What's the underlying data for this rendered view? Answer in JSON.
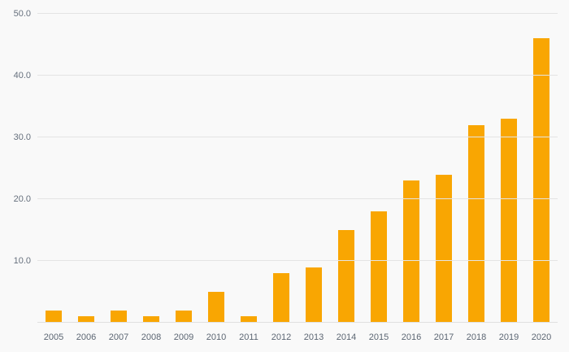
{
  "chart_data": {
    "type": "bar",
    "categories": [
      "2005",
      "2006",
      "2007",
      "2008",
      "2009",
      "2010",
      "2011",
      "2012",
      "2013",
      "2014",
      "2015",
      "2016",
      "2017",
      "2018",
      "2019",
      "2020"
    ],
    "values": [
      2,
      1,
      2,
      1,
      2,
      5,
      1,
      8,
      9,
      15,
      18,
      23,
      24,
      32,
      33,
      46
    ],
    "title": "",
    "xlabel": "",
    "ylabel": "",
    "ylim": [
      0,
      50
    ],
    "ytick_step": 10,
    "ytick_labels": [
      "10.0",
      "20.0",
      "30.0",
      "40.0",
      "50.0"
    ],
    "grid": true,
    "legend": false,
    "bar_color": "#f9a602",
    "background_color": "#f9f9f9",
    "gridline_color": "#e4e4e4",
    "tick_label_color": "#5c6673"
  }
}
